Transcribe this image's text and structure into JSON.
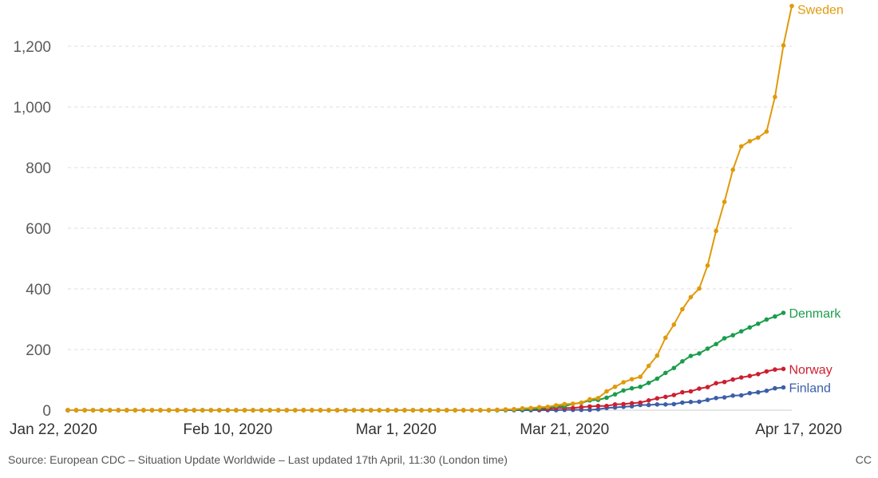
{
  "chart_data": {
    "type": "line",
    "x": {
      "start": "2020-01-22",
      "end": "2020-04-17",
      "tick_labels": [
        "Jan 22, 2020",
        "Feb 10, 2020",
        "Mar 1, 2020",
        "Mar 21, 2020",
        "Apr 17, 2020"
      ],
      "tick_dates": [
        "2020-01-22",
        "2020-02-10",
        "2020-03-01",
        "2020-03-21",
        "2020-04-17"
      ]
    },
    "y": {
      "ylim": [
        0,
        1300
      ],
      "ticks": [
        0,
        200,
        400,
        600,
        800,
        1000,
        1200
      ],
      "tick_labels": [
        "0",
        "200",
        "400",
        "600",
        "800",
        "1,000",
        "1,200"
      ]
    },
    "grid": "horizontal dashed",
    "legend": "inline labels at line ends",
    "series": [
      {
        "name": "Sweden",
        "color": "#e09a0a",
        "points": [
          [
            "2020-03-13",
            1
          ],
          [
            "2020-03-14",
            2
          ],
          [
            "2020-03-15",
            3
          ],
          [
            "2020-03-16",
            6
          ],
          [
            "2020-03-17",
            7
          ],
          [
            "2020-03-18",
            10
          ],
          [
            "2020-03-19",
            11
          ],
          [
            "2020-03-20",
            16
          ],
          [
            "2020-03-21",
            20
          ],
          [
            "2020-03-22",
            21
          ],
          [
            "2020-03-23",
            25
          ],
          [
            "2020-03-24",
            36
          ],
          [
            "2020-03-25",
            40
          ],
          [
            "2020-03-26",
            62
          ],
          [
            "2020-03-27",
            77
          ],
          [
            "2020-03-28",
            92
          ],
          [
            "2020-03-29",
            102
          ],
          [
            "2020-03-30",
            110
          ],
          [
            "2020-03-31",
            146
          ],
          [
            "2020-04-01",
            180
          ],
          [
            "2020-04-02",
            239
          ],
          [
            "2020-04-03",
            282
          ],
          [
            "2020-04-04",
            333
          ],
          [
            "2020-04-05",
            373
          ],
          [
            "2020-04-06",
            401
          ],
          [
            "2020-04-07",
            477
          ],
          [
            "2020-04-08",
            591
          ],
          [
            "2020-04-09",
            687
          ],
          [
            "2020-04-10",
            793
          ],
          [
            "2020-04-11",
            870
          ],
          [
            "2020-04-12",
            887
          ],
          [
            "2020-04-13",
            899
          ],
          [
            "2020-04-14",
            919
          ],
          [
            "2020-04-15",
            1033
          ],
          [
            "2020-04-16",
            1203
          ],
          [
            "2020-04-17",
            1333
          ]
        ]
      },
      {
        "name": "Denmark",
        "color": "#1a9d4b",
        "points": [
          [
            "2020-03-14",
            1
          ],
          [
            "2020-03-15",
            2
          ],
          [
            "2020-03-16",
            3
          ],
          [
            "2020-03-17",
            4
          ],
          [
            "2020-03-18",
            6
          ],
          [
            "2020-03-19",
            9
          ],
          [
            "2020-03-20",
            13
          ],
          [
            "2020-03-21",
            13
          ],
          [
            "2020-03-22",
            21
          ],
          [
            "2020-03-23",
            24
          ],
          [
            "2020-03-24",
            32
          ],
          [
            "2020-03-25",
            34
          ],
          [
            "2020-03-26",
            41
          ],
          [
            "2020-03-27",
            52
          ],
          [
            "2020-03-28",
            65
          ],
          [
            "2020-03-29",
            72
          ],
          [
            "2020-03-30",
            77
          ],
          [
            "2020-03-31",
            90
          ],
          [
            "2020-04-01",
            104
          ],
          [
            "2020-04-02",
            123
          ],
          [
            "2020-04-03",
            139
          ],
          [
            "2020-04-04",
            161
          ],
          [
            "2020-04-05",
            179
          ],
          [
            "2020-04-06",
            187
          ],
          [
            "2020-04-07",
            203
          ],
          [
            "2020-04-08",
            218
          ],
          [
            "2020-04-09",
            237
          ],
          [
            "2020-04-10",
            247
          ],
          [
            "2020-04-11",
            260
          ],
          [
            "2020-04-12",
            273
          ],
          [
            "2020-04-13",
            285
          ],
          [
            "2020-04-14",
            299
          ],
          [
            "2020-04-15",
            309
          ],
          [
            "2020-04-16",
            321
          ]
        ]
      },
      {
        "name": "Norway",
        "color": "#cc1f2f",
        "points": [
          [
            "2020-03-13",
            1
          ],
          [
            "2020-03-14",
            2
          ],
          [
            "2020-03-15",
            3
          ],
          [
            "2020-03-16",
            3
          ],
          [
            "2020-03-17",
            3
          ],
          [
            "2020-03-18",
            3
          ],
          [
            "2020-03-19",
            4
          ],
          [
            "2020-03-20",
            7
          ],
          [
            "2020-03-21",
            7
          ],
          [
            "2020-03-22",
            7
          ],
          [
            "2020-03-23",
            10
          ],
          [
            "2020-03-24",
            12
          ],
          [
            "2020-03-25",
            14
          ],
          [
            "2020-03-26",
            14
          ],
          [
            "2020-03-27",
            19
          ],
          [
            "2020-03-28",
            20
          ],
          [
            "2020-03-29",
            23
          ],
          [
            "2020-03-30",
            25
          ],
          [
            "2020-03-31",
            32
          ],
          [
            "2020-04-01",
            39
          ],
          [
            "2020-04-02",
            44
          ],
          [
            "2020-04-03",
            50
          ],
          [
            "2020-04-04",
            59
          ],
          [
            "2020-04-05",
            62
          ],
          [
            "2020-04-06",
            71
          ],
          [
            "2020-04-07",
            76
          ],
          [
            "2020-04-08",
            89
          ],
          [
            "2020-04-09",
            93
          ],
          [
            "2020-04-10",
            101
          ],
          [
            "2020-04-11",
            108
          ],
          [
            "2020-04-12",
            113
          ],
          [
            "2020-04-13",
            119
          ],
          [
            "2020-04-14",
            128
          ],
          [
            "2020-04-15",
            134
          ],
          [
            "2020-04-16",
            136
          ]
        ]
      },
      {
        "name": "Finland",
        "color": "#3b5fa8",
        "points": [
          [
            "2020-03-21",
            1
          ],
          [
            "2020-03-22",
            1
          ],
          [
            "2020-03-23",
            1
          ],
          [
            "2020-03-24",
            1
          ],
          [
            "2020-03-25",
            3
          ],
          [
            "2020-03-26",
            7
          ],
          [
            "2020-03-27",
            9
          ],
          [
            "2020-03-28",
            11
          ],
          [
            "2020-03-29",
            13
          ],
          [
            "2020-03-30",
            17
          ],
          [
            "2020-03-31",
            17
          ],
          [
            "2020-04-01",
            19
          ],
          [
            "2020-04-02",
            19
          ],
          [
            "2020-04-03",
            20
          ],
          [
            "2020-04-04",
            25
          ],
          [
            "2020-04-05",
            27
          ],
          [
            "2020-04-06",
            28
          ],
          [
            "2020-04-07",
            34
          ],
          [
            "2020-04-08",
            40
          ],
          [
            "2020-04-09",
            42
          ],
          [
            "2020-04-10",
            48
          ],
          [
            "2020-04-11",
            49
          ],
          [
            "2020-04-12",
            56
          ],
          [
            "2020-04-13",
            59
          ],
          [
            "2020-04-14",
            64
          ],
          [
            "2020-04-15",
            72
          ],
          [
            "2020-04-16",
            75
          ]
        ]
      }
    ]
  },
  "footer": {
    "source": "Source: European CDC – Situation Update Worldwide – Last updated 17th April, 11:30 (London time)",
    "license": "CC"
  }
}
